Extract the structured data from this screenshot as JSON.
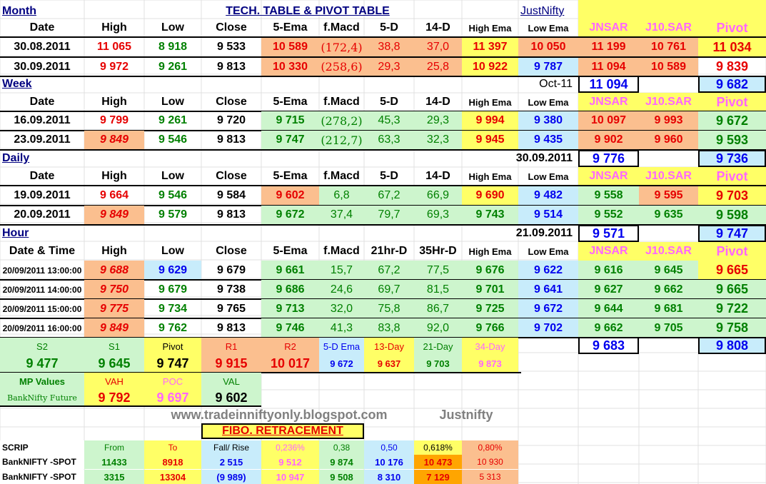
{
  "labels": {
    "month": "Month",
    "title": "TECH. TABLE  &  PIVOT TABLE",
    "justnifty": "JustNifty",
    "week": "Week",
    "daily": "Daily",
    "hour": "Hour",
    "site": "www.tradeinniftyonly.blogspot.com",
    "justnifty2": "Justnifty",
    "fibo_title": "FIBO. RETRACEMENT"
  },
  "headers": {
    "date": "Date",
    "date_time": "Date & Time",
    "high": "High",
    "low": "Low",
    "close": "Close",
    "ema5": "5-Ema",
    "fmacd": "f.Macd",
    "d5": "5-D",
    "d14": "14-D",
    "hr21": "21hr-D",
    "hr35": "35Hr-D",
    "high_ema": "High Ema",
    "low_ema": "Low Ema",
    "jnsar": "JNSAR",
    "j10sar": "J10.SAR",
    "pivot": "Pivot"
  },
  "month": {
    "rows": [
      {
        "date": "30.08.2011",
        "high": "11 065",
        "low": "8 918",
        "close": "9 533",
        "ema5": "10 589",
        "fmacd": "(172,4)",
        "d5": "38,8",
        "d14": "37,0",
        "high_ema": "11 397",
        "low_ema": "10 050",
        "jnsar": "11 199",
        "j10sar": "10 761",
        "pivot": "11 034"
      },
      {
        "date": "30.09.2011",
        "high": "9 972",
        "low": "9 261",
        "close": "9 813",
        "ema5": "10 330",
        "fmacd": "(258,6)",
        "d5": "29,3",
        "d14": "25,8",
        "high_ema": "10 922",
        "low_ema": "9 787",
        "jnsar": "11 094",
        "j10sar": "10 589",
        "pivot": "9 839"
      }
    ],
    "next_label": "Oct-11",
    "next_jnsar": "11 094",
    "next_pivot": "9 682"
  },
  "week": {
    "rows": [
      {
        "date": "16.09.2011",
        "high": "9 799",
        "low": "9 261",
        "close": "9 720",
        "ema5": "9 715",
        "fmacd": "(278,2)",
        "d5": "45,3",
        "d14": "29,3",
        "high_ema": "9 994",
        "low_ema": "9 380",
        "jnsar": "10 097",
        "j10sar": "9 993",
        "pivot": "9 672"
      },
      {
        "date": "23.09.2011",
        "high": "9 849",
        "low": "9 546",
        "close": "9 813",
        "ema5": "9 747",
        "fmacd": "(212,7)",
        "d5": "63,3",
        "d14": "32,3",
        "high_ema": "9 945",
        "low_ema": "9 435",
        "jnsar": "9 902",
        "j10sar": "9 960",
        "pivot": "9 593"
      }
    ],
    "next_label": "30.09.2011",
    "next_jnsar": "9 776",
    "next_pivot": "9 736"
  },
  "daily": {
    "rows": [
      {
        "date": "19.09.2011",
        "high": "9 664",
        "low": "9 546",
        "close": "9 584",
        "ema5": "9 602",
        "fmacd": "6,8",
        "d5": "67,2",
        "d14": "66,9",
        "high_ema": "9 690",
        "low_ema": "9 482",
        "jnsar": "9 558",
        "j10sar": "9 595",
        "pivot": "9 703"
      },
      {
        "date": "20.09.2011",
        "high": "9 849",
        "low": "9 579",
        "close": "9 813",
        "ema5": "9 672",
        "fmacd": "37,4",
        "d5": "79,7",
        "d14": "69,3",
        "high_ema": "9 743",
        "low_ema": "9 514",
        "jnsar": "9 552",
        "j10sar": "9 635",
        "pivot": "9 598"
      }
    ],
    "next_label": "21.09.2011",
    "next_jnsar": "9 571",
    "next_pivot": "9 747"
  },
  "hour": {
    "rows": [
      {
        "date": "20/09/2011 13:00:00",
        "high": "9 688",
        "low": "9 629",
        "close": "9 679",
        "ema5": "9 661",
        "fmacd": "15,7",
        "d5": "67,2",
        "d14": "77,5",
        "high_ema": "9 676",
        "low_ema": "9 622",
        "jnsar": "9 616",
        "j10sar": "9 645",
        "pivot": "9 665"
      },
      {
        "date": "20/09/2011 14:00:00",
        "high": "9 750",
        "low": "9 679",
        "close": "9 738",
        "ema5": "9 686",
        "fmacd": "24,6",
        "d5": "69,7",
        "d14": "81,5",
        "high_ema": "9 701",
        "low_ema": "9 641",
        "jnsar": "9 627",
        "j10sar": "9 662",
        "pivot": "9 665"
      },
      {
        "date": "20/09/2011 15:00:00",
        "high": "9 775",
        "low": "9 734",
        "close": "9 765",
        "ema5": "9 713",
        "fmacd": "32,0",
        "d5": "75,8",
        "d14": "86,7",
        "high_ema": "9 725",
        "low_ema": "9 672",
        "jnsar": "9 644",
        "j10sar": "9 681",
        "pivot": "9 722"
      },
      {
        "date": "20/09/2011 16:00:00",
        "high": "9 849",
        "low": "9 762",
        "close": "9 813",
        "ema5": "9 746",
        "fmacd": "41,3",
        "d5": "83,8",
        "d14": "92,0",
        "high_ema": "9 766",
        "low_ema": "9 702",
        "jnsar": "9 662",
        "j10sar": "9 705",
        "pivot": "9 758"
      }
    ],
    "next_jnsar": "9 683",
    "next_pivot": "9 808"
  },
  "levels": {
    "labels": [
      "S2",
      "S1",
      "Pivot",
      "R1",
      "R2",
      "5-D Ema",
      "13-Day",
      "21-Day",
      "34-Day"
    ],
    "values": [
      "9 477",
      "9 645",
      "9 747",
      "9 915",
      "10 017",
      "9 672",
      "9 637",
      "9 703",
      "9 873"
    ]
  },
  "mp": {
    "label": "MP Values",
    "vah_l": "VAH",
    "poc_l": "POC",
    "val_l": "VAL",
    "row_label": "BankNifty Future",
    "vah": "9 792",
    "poc": "9 697",
    "val": "9 602"
  },
  "fibo": {
    "headers": [
      "SCRIP",
      "From",
      "To",
      "Fall/ Rise",
      "0,236%",
      "0,38",
      "0,50",
      "0,618%",
      "0,80%"
    ],
    "rows": [
      [
        "BankNIFTY -SPOT",
        "11433",
        "8918",
        "2 515",
        "9 512",
        "9 874",
        "10 176",
        "10 473",
        "10 930"
      ],
      [
        "BankNIFTY -SPOT",
        "3315",
        "13304",
        "(9 989)",
        "10 947",
        "9 508",
        "8 310",
        "7 129",
        "5 313"
      ]
    ]
  },
  "colors": {
    "salmon": "#fbbf8f",
    "yellow": "#ffff66",
    "lgreen": "#cdf5cd",
    "lblue": "#c8ecfb",
    "pink": "#ff66ff",
    "red": "#e60000",
    "green": "#008000",
    "blue": "#0000ee",
    "navy": "#000080"
  }
}
